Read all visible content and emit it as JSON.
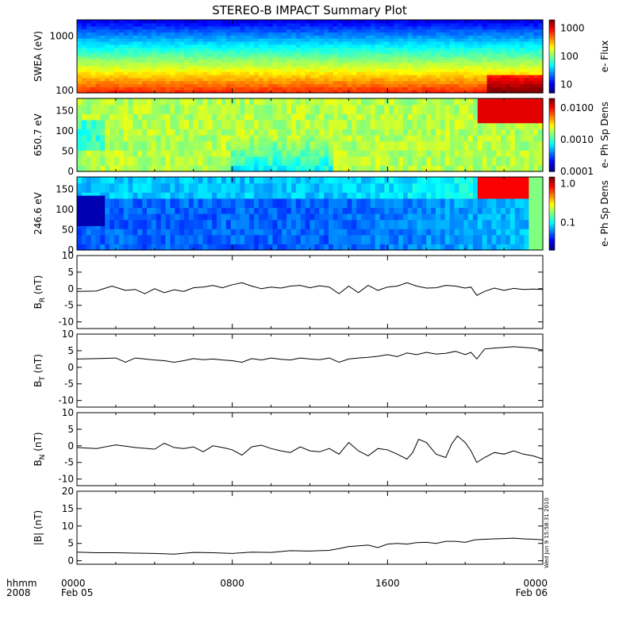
{
  "title": "STEREO-B IMPACT Summary Plot",
  "footer": {
    "left_top": "hhmm",
    "left_bottom": "2008",
    "x_ticks": [
      {
        "time": "0000",
        "date": "Feb 05"
      },
      {
        "time": "0800",
        "date": ""
      },
      {
        "time": "1600",
        "date": ""
      },
      {
        "time": "0000",
        "date": "Feb 06"
      }
    ]
  },
  "timestamp": "Wed Jun 9 15:58:31 2010",
  "chart_data": [
    {
      "type": "heatmap",
      "ylabel": "SWEA (eV)",
      "ylim": [
        90,
        2000
      ],
      "yscale": "log",
      "yticks": [
        "1000",
        "100"
      ],
      "colorbar_label": "e- Flux",
      "colorbar_ticks": [
        "1000",
        "100",
        "10"
      ],
      "colorbar_range": [
        5,
        2000
      ]
    },
    {
      "type": "heatmap",
      "ylabel": "650.7 eV",
      "ylim": [
        0,
        180
      ],
      "yticks": [
        "150",
        "100",
        "50",
        "0"
      ],
      "colorbar_label": "e- Ph Sp Dens",
      "colorbar_ticks": [
        "0.0100",
        "0.0010",
        "0.0001"
      ],
      "colorbar_range": [
        0.0001,
        0.02
      ]
    },
    {
      "type": "heatmap",
      "ylabel": "246.6 eV",
      "ylim": [
        0,
        180
      ],
      "yticks": [
        "150",
        "100",
        "50",
        "0"
      ],
      "colorbar_label": "e- Ph Sp Dens",
      "colorbar_ticks": [
        "1.0",
        "0.1"
      ],
      "colorbar_range": [
        0.02,
        1.5
      ]
    },
    {
      "type": "line",
      "ylabel": "B",
      "ylabel_sub": "R",
      "ylabel_unit": " (nT)",
      "ylim": [
        -12,
        10
      ],
      "yticks": [
        "10",
        "5",
        "0",
        "-5",
        "-10"
      ],
      "x_hours": [
        0,
        1,
        1.8,
        2.5,
        3,
        3.5,
        4,
        4.5,
        5,
        5.5,
        6,
        6.5,
        7,
        7.5,
        8,
        8.5,
        9,
        9.5,
        10,
        10.5,
        11,
        11.5,
        12,
        12.5,
        13,
        13.5,
        14,
        14.5,
        15,
        15.5,
        16,
        16.5,
        17,
        17.5,
        18,
        18.5,
        19,
        19.5,
        20,
        20.3,
        20.6,
        21,
        21.5,
        22,
        22.5,
        23,
        23.5,
        24
      ],
      "y": [
        -0.8,
        -0.7,
        0.8,
        -0.5,
        -0.2,
        -1.5,
        0,
        -1.2,
        -0.3,
        -0.8,
        0.3,
        0.5,
        1.0,
        0.3,
        1.2,
        1.8,
        0.8,
        0,
        0.5,
        0.2,
        0.8,
        1.0,
        0.3,
        0.9,
        0.5,
        -1.5,
        0.8,
        -1.2,
        1.0,
        -0.5,
        0.5,
        0.8,
        1.8,
        0.8,
        0.2,
        0.3,
        1.0,
        0.8,
        0.2,
        0.5,
        -2.0,
        -0.8,
        0.2,
        -0.5,
        0.1,
        -0.2,
        -0.1,
        -0.2
      ]
    },
    {
      "type": "line",
      "ylabel": "B",
      "ylabel_sub": "T",
      "ylabel_unit": " (nT)",
      "ylim": [
        -12,
        10
      ],
      "yticks": [
        "10",
        "5",
        "0",
        "-5",
        "-10"
      ],
      "x_hours": [
        0,
        1,
        2,
        2.5,
        3,
        3.5,
        4,
        4.5,
        5,
        5.5,
        6,
        6.5,
        7,
        7.5,
        8,
        8.5,
        9,
        9.5,
        10,
        10.5,
        11,
        11.5,
        12,
        12.5,
        13,
        13.5,
        14,
        14.5,
        15,
        15.5,
        16,
        16.5,
        17,
        17.5,
        18,
        18.5,
        19,
        19.5,
        20,
        20.3,
        20.6,
        21,
        21.5,
        22,
        22.5,
        23,
        23.5,
        24
      ],
      "y": [
        2.5,
        2.6,
        2.8,
        1.5,
        2.8,
        2.5,
        2.2,
        2.0,
        1.5,
        2.0,
        2.6,
        2.3,
        2.5,
        2.2,
        2.0,
        1.5,
        2.6,
        2.2,
        2.8,
        2.4,
        2.2,
        2.8,
        2.5,
        2.3,
        2.8,
        1.5,
        2.5,
        2.8,
        3.0,
        3.3,
        3.8,
        3.2,
        4.3,
        3.8,
        4.5,
        4.0,
        4.2,
        4.8,
        3.8,
        4.5,
        2.5,
        5.5,
        5.8,
        6.0,
        6.2,
        6.0,
        5.8,
        5.2
      ]
    },
    {
      "type": "line",
      "ylabel": "B",
      "ylabel_sub": "N",
      "ylabel_unit": " (nT)",
      "ylim": [
        -12,
        10
      ],
      "yticks": [
        "10",
        "5",
        "0",
        "-5",
        "-10"
      ],
      "x_hours": [
        0,
        1,
        2,
        3,
        4,
        4.5,
        5,
        5.5,
        6,
        6.5,
        7,
        7.5,
        8,
        8.5,
        9,
        9.5,
        10,
        10.5,
        11,
        11.5,
        12,
        12.5,
        13,
        13.5,
        14,
        14.5,
        15,
        15.5,
        16,
        16.5,
        17,
        17.3,
        17.6,
        18,
        18.5,
        19,
        19.3,
        19.6,
        20,
        20.3,
        20.6,
        21,
        21.5,
        22,
        22.5,
        23,
        23.5,
        24
      ],
      "y": [
        -0.5,
        -0.8,
        0.3,
        -0.5,
        -1.0,
        0.8,
        -0.5,
        -0.8,
        -0.3,
        -1.8,
        0.0,
        -0.5,
        -1.2,
        -2.8,
        -0.3,
        0.2,
        -0.8,
        -1.5,
        -2.0,
        -0.3,
        -1.5,
        -1.8,
        -0.8,
        -2.5,
        1.0,
        -1.5,
        -3.0,
        -0.8,
        -1.2,
        -2.5,
        -4.0,
        -2.0,
        2.0,
        1.0,
        -2.5,
        -3.5,
        0.5,
        3.0,
        1.0,
        -1.5,
        -5.0,
        -3.5,
        -2.0,
        -2.5,
        -1.5,
        -2.5,
        -3.0,
        -4.0
      ]
    },
    {
      "type": "line",
      "ylabel": "|B| (nT)",
      "ylim": [
        -1,
        20
      ],
      "yticks": [
        "20",
        "15",
        "10",
        "5",
        "0"
      ],
      "x_hours": [
        0,
        1,
        2,
        3,
        4,
        5,
        6,
        7,
        8,
        9,
        10,
        11,
        12,
        12.5,
        13,
        13.5,
        14,
        15,
        15.5,
        16,
        16.5,
        17,
        17.5,
        18,
        18.5,
        19,
        19.5,
        20,
        20.5,
        21,
        21.5,
        22,
        22.5,
        23,
        23.5,
        24
      ],
      "y": [
        2.5,
        2.3,
        2.3,
        2.2,
        2.1,
        1.9,
        2.4,
        2.3,
        2.1,
        2.5,
        2.4,
        2.9,
        2.8,
        2.9,
        3.0,
        3.5,
        4.1,
        4.5,
        3.8,
        4.8,
        5.0,
        4.8,
        5.2,
        5.3,
        5.0,
        5.6,
        5.6,
        5.3,
        6.0,
        6.2,
        6.3,
        6.4,
        6.5,
        6.3,
        6.2,
        6.0
      ]
    }
  ]
}
